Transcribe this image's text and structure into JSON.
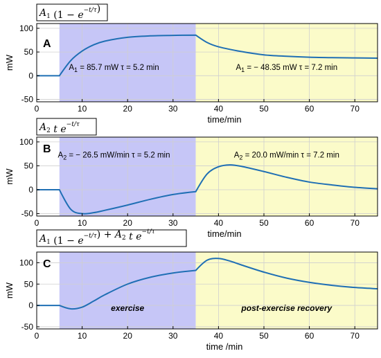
{
  "chart_data": [
    {
      "type": "line",
      "panel": "A",
      "title": "A1(1 − e^(−t/τ))",
      "xlabel": "time/min",
      "ylabel": "mW",
      "xlim": [
        0,
        75
      ],
      "ylim": [
        -55,
        110
      ],
      "xticks": [
        0,
        10,
        20,
        30,
        40,
        50,
        60,
        70
      ],
      "yticks": [
        -50,
        0,
        50,
        100
      ],
      "grid": true,
      "regions": [
        {
          "name": "exercise",
          "x": [
            5,
            35
          ],
          "color": "#c6c6f7"
        },
        {
          "name": "post-exercise recovery",
          "x": [
            35,
            75
          ],
          "color": "#fbfbc9"
        }
      ],
      "annotations": [
        {
          "text": "A₁ = 85.7 mW τ = 5.2 min",
          "x": 17,
          "y": 12
        },
        {
          "text": "A₁ = − 48.35 mW τ = 7.2 min",
          "x": 55,
          "y": 12
        }
      ],
      "series": [
        {
          "color": "#1f6fb4",
          "x": [
            0,
            5,
            7.5,
            10,
            12.5,
            15,
            20,
            25,
            30,
            35,
            37.5,
            40,
            45,
            50,
            55,
            60,
            65,
            70,
            75
          ],
          "y": [
            0,
            0,
            32,
            52,
            65,
            73,
            81,
            84,
            85,
            85.6,
            70,
            61,
            51,
            44,
            41,
            39,
            38,
            37.5,
            37
          ]
        }
      ]
    },
    {
      "type": "line",
      "panel": "B",
      "title": "A2 t e^(−t/τ)",
      "xlabel": "time/min",
      "ylabel": "mW",
      "xlim": [
        0,
        75
      ],
      "ylim": [
        -55,
        110
      ],
      "xticks": [
        0,
        10,
        20,
        30,
        40,
        50,
        60,
        70
      ],
      "yticks": [
        -50,
        0,
        50,
        100
      ],
      "grid": true,
      "regions": [
        {
          "name": "exercise",
          "x": [
            5,
            35
          ],
          "color": "#c6c6f7"
        },
        {
          "name": "post-exercise recovery",
          "x": [
            35,
            75
          ],
          "color": "#fbfbc9"
        }
      ],
      "annotations": [
        {
          "text": "A₂ = − 26.5 mW/min τ = 5.2 min",
          "x": 17,
          "y": 67
        },
        {
          "text": "A₂ = 20.0 mW/min τ = 7.2 min",
          "x": 55,
          "y": 67
        }
      ],
      "series": [
        {
          "color": "#1f6fb4",
          "x": [
            0,
            5,
            7.5,
            10,
            12.5,
            15,
            20,
            25,
            30,
            35,
            37.5,
            40,
            42.5,
            45,
            50,
            55,
            60,
            65,
            70,
            75
          ],
          "y": [
            0,
            0,
            -41,
            -50,
            -48,
            -43,
            -32,
            -20,
            -10,
            -4,
            33,
            48,
            52,
            49,
            38,
            26,
            16,
            10,
            5,
            2
          ]
        }
      ]
    },
    {
      "type": "line",
      "panel": "C",
      "title": "A1(1 − e^(−t/τ)) + A2 t e^(−t/τ)",
      "xlabel": "time /min",
      "ylabel": "mW",
      "xlim": [
        0,
        75
      ],
      "ylim": [
        -55,
        125
      ],
      "xticks": [
        0,
        10,
        20,
        30,
        40,
        50,
        60,
        70
      ],
      "yticks": [
        -50,
        0,
        50,
        100
      ],
      "grid": true,
      "regions": [
        {
          "name": "exercise",
          "x": [
            5,
            35
          ],
          "color": "#c6c6f7"
        },
        {
          "name": "post-exercise recovery",
          "x": [
            35,
            75
          ],
          "color": "#fbfbc9"
        }
      ],
      "region_labels": [
        "exercise",
        "post-exercise recovery"
      ],
      "series": [
        {
          "color": "#1f6fb4",
          "x": [
            0,
            5,
            7.5,
            10,
            12.5,
            15,
            20,
            25,
            30,
            35,
            37.5,
            40,
            42.5,
            45,
            50,
            55,
            60,
            65,
            70,
            75
          ],
          "y": [
            0,
            0,
            -8,
            -4,
            10,
            25,
            50,
            66,
            76,
            82,
            106,
            110,
            104,
            95,
            78,
            64,
            54,
            47,
            42,
            39
          ]
        }
      ]
    }
  ],
  "labels": {
    "panelA": "A",
    "panelB": "B",
    "panelC": "C"
  }
}
